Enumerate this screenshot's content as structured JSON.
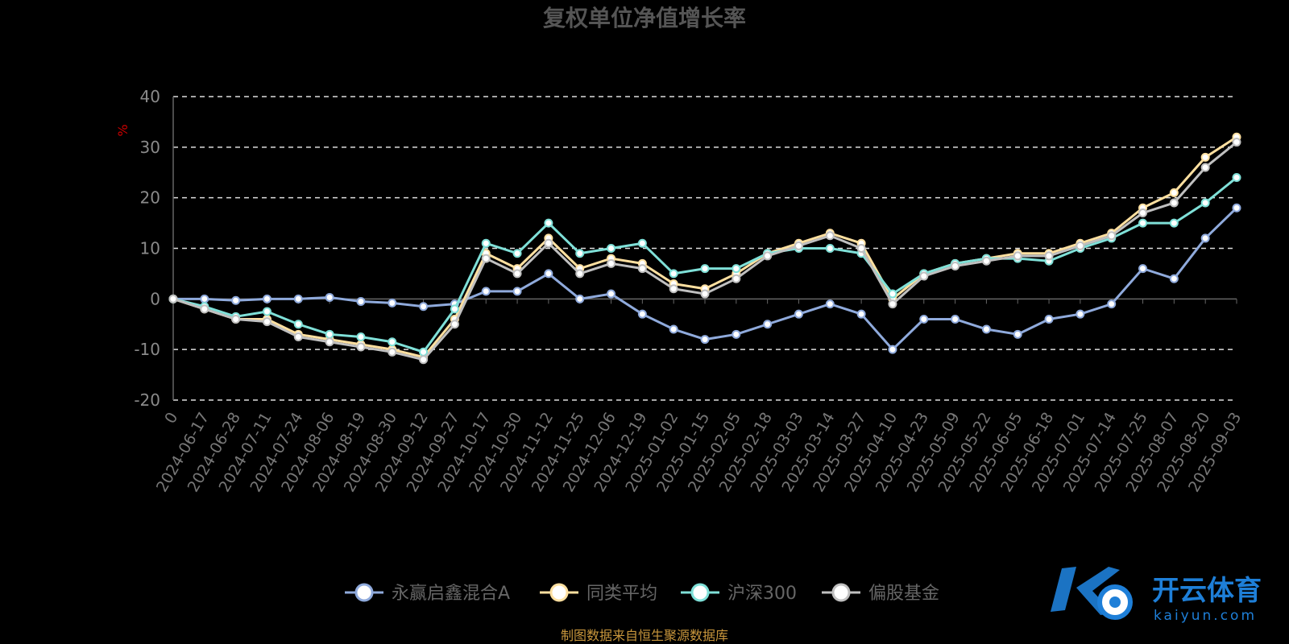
{
  "chart_data": {
    "type": "line",
    "title": "复权单位净值增长率",
    "ylabel": "%",
    "ylim": [
      -20,
      40
    ],
    "yticks": [
      -20,
      -10,
      0,
      10,
      20,
      30,
      40
    ],
    "grid": true,
    "legend_position": "bottom",
    "x_ticks": [
      "0",
      "2024-06-17",
      "2024-06-28",
      "2024-07-11",
      "2024-07-24",
      "2024-08-06",
      "2024-08-19",
      "2024-08-30",
      "2024-09-12",
      "2024-09-27",
      "2024-10-17",
      "2024-10-30",
      "2024-11-12",
      "2024-11-25",
      "2024-12-06",
      "2024-12-19",
      "2025-01-02",
      "2025-01-15",
      "2025-02-05",
      "2025-02-18",
      "2025-03-03",
      "2025-03-14",
      "2025-03-27",
      "2025-04-10",
      "2025-04-23",
      "2025-05-09",
      "2025-05-22",
      "2025-06-05",
      "2025-06-18",
      "2025-07-01",
      "2025-07-14",
      "2025-07-25",
      "2025-08-07",
      "2025-08-20",
      "2025-09-03"
    ],
    "series": [
      {
        "name": "永赢启鑫混合A",
        "color": "#8faadc",
        "values": [
          0,
          0,
          -0.3,
          0,
          0,
          0.3,
          -0.5,
          -0.8,
          -1.5,
          -1,
          1.5,
          1.5,
          5,
          0,
          1,
          -3,
          -6,
          -8,
          -7,
          -5,
          -3,
          -1,
          -3,
          -10,
          -4,
          -4,
          -6,
          -7,
          -4,
          -3,
          -1,
          6,
          4,
          12,
          18
        ]
      },
      {
        "name": "同类平均",
        "color": "#ffe0a0",
        "values": [
          0,
          -2,
          -4,
          -4,
          -7,
          -8,
          -9,
          -10,
          -11.5,
          -4,
          9,
          6,
          12,
          6,
          8,
          7,
          3,
          2,
          5,
          9,
          11,
          13,
          11,
          0,
          5,
          7,
          8,
          9,
          9,
          11,
          13,
          18,
          21,
          28,
          32
        ]
      },
      {
        "name": "沪深300",
        "color": "#7fe0d8",
        "values": [
          0,
          -1.5,
          -3.5,
          -2.5,
          -5,
          -7,
          -7.5,
          -8.5,
          -10.5,
          -2,
          11,
          9,
          15,
          9,
          10,
          11,
          5,
          6,
          6,
          9,
          10,
          10,
          9,
          1,
          5,
          7,
          8,
          8,
          7.5,
          10,
          12,
          15,
          15,
          19,
          24
        ]
      },
      {
        "name": "偏股基金",
        "color": "#c0c0c0",
        "values": [
          0,
          -2,
          -4,
          -4.5,
          -7.5,
          -8.5,
          -9.5,
          -10.5,
          -12,
          -5,
          8,
          5,
          11,
          5,
          7,
          6,
          2,
          1,
          4,
          8.5,
          10.5,
          12.5,
          10,
          -1,
          4.5,
          6.5,
          7.5,
          8.5,
          8.5,
          10.5,
          12.5,
          17,
          19,
          26,
          31
        ]
      }
    ]
  },
  "source_text": "制图数据来自恒生聚源数据库",
  "watermark": {
    "cn": "开云体育",
    "en": "kaiyun.com",
    "color": "#1e7fd8"
  }
}
